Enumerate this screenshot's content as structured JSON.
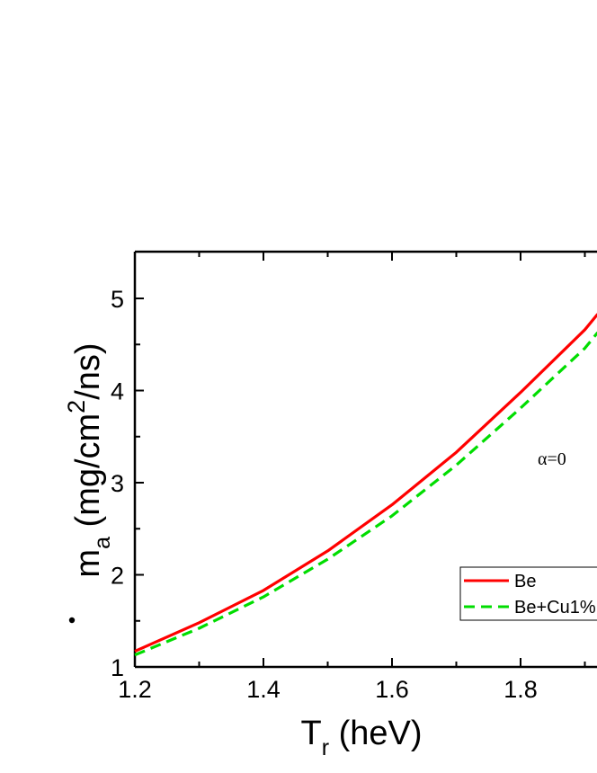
{
  "chart_data": {
    "type": "line",
    "xlabel": {
      "main": "T",
      "sub": "r",
      "unit": "(heV)"
    },
    "ylabel": {
      "main": "m",
      "sub": "a",
      "unit_pre": "(mg/cm",
      "unit_sup": "2",
      "unit_post": "/ns)"
    },
    "xlim": [
      1.2,
      2.0
    ],
    "ylim": [
      1,
      5.5
    ],
    "x_ticks": [
      "1.2",
      "1.4",
      "1.6",
      "1.8"
    ],
    "y_ticks": [
      "1",
      "2",
      "3",
      "4",
      "5"
    ],
    "annotation": "α=0",
    "legend_position": "lower-right",
    "grid": false,
    "series": [
      {
        "name": "Be",
        "color": "#ff0000",
        "dash": "solid",
        "x": [
          1.2,
          1.3,
          1.4,
          1.5,
          1.6,
          1.7,
          1.8,
          1.9,
          1.92
        ],
        "y": [
          1.17,
          1.48,
          1.83,
          2.26,
          2.76,
          3.33,
          3.98,
          4.66,
          4.83
        ]
      },
      {
        "name": "Be+Cu1%",
        "color": "#00dd00",
        "dash": "dashed",
        "x": [
          1.2,
          1.3,
          1.4,
          1.5,
          1.6,
          1.7,
          1.8,
          1.9,
          1.92
        ],
        "y": [
          1.13,
          1.42,
          1.76,
          2.17,
          2.64,
          3.19,
          3.81,
          4.46,
          4.63
        ]
      }
    ]
  }
}
